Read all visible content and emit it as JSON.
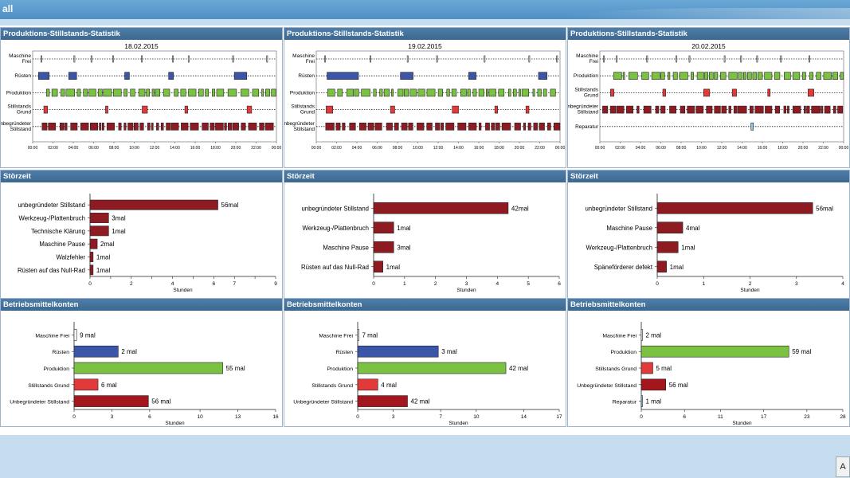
{
  "app": {
    "title": "all"
  },
  "corner_button": {
    "label": "A"
  },
  "colors": {
    "header_bg": "#3f6d96",
    "unbegruendet": "#8e1b22",
    "ruesten": "#3b55a8",
    "produktion": "#7cc242",
    "stillstand": "#e23a3a",
    "reparatur": "#8ec9e8",
    "frei": "#ffffff"
  },
  "panels": {
    "timeline_title": "Produktions-Stillstands-Statistik",
    "stoerzeit_title": "Störzeit",
    "betriebsmittel_title": "Betriebsmittelkonten"
  },
  "chart_data": [
    {
      "id": "timeline-1",
      "type": "timeline",
      "title": "18.02.2015",
      "rows": [
        "Maschine Frei",
        "Rüsten",
        "Produktion",
        "Stillstands Grund",
        "Unbegründeter Stillstand"
      ],
      "x_ticks": [
        "00:00",
        "02:00",
        "04:00",
        "06:00",
        "08:00",
        "10:00",
        "12:00",
        "14:00",
        "16:00",
        "18:00",
        "20:00",
        "22:00",
        "00:00"
      ]
    },
    {
      "id": "timeline-2",
      "type": "timeline",
      "title": "19.02.2015",
      "rows": [
        "Maschine Frei",
        "Rüsten",
        "Produktion",
        "Stillstands Grund",
        "Unbegründeter Stillstand"
      ],
      "x_ticks": [
        "00:00",
        "02:00",
        "04:00",
        "06:00",
        "08:00",
        "10:00",
        "12:00",
        "14:00",
        "16:00",
        "18:00",
        "20:00",
        "22:00",
        "00:00"
      ]
    },
    {
      "id": "timeline-3",
      "type": "timeline",
      "title": "20.02.2015",
      "rows": [
        "Maschine Frei",
        "Produktion",
        "Stillstands Grund",
        "Unbegründeter Stillstand",
        "Reparatur"
      ],
      "x_ticks": [
        "00:00",
        "02:00",
        "04:00",
        "06:00",
        "08:00",
        "10:00",
        "12:00",
        "14:00",
        "16:00",
        "18:00",
        "20:00",
        "22:00",
        "00:00"
      ]
    },
    {
      "id": "stoer-1",
      "type": "bar",
      "orientation": "horizontal",
      "categories": [
        "unbegründeter Stillstand",
        "Werkzeug-/Plattenbruch",
        "Technische Klärung",
        "Maschine Pause",
        "Walzfehler",
        "Rüsten auf das Null-Rad"
      ],
      "values": [
        6.2,
        0.9,
        0.9,
        0.35,
        0.15,
        0.15
      ],
      "labels": [
        "56mal",
        "3mal",
        "1mal",
        "2mal",
        "1mal",
        "1mal"
      ],
      "xlim": [
        0,
        9
      ],
      "x_ticks": [
        0,
        1,
        2,
        3,
        4,
        5,
        6,
        7,
        8,
        9
      ],
      "x_tick_labels": [
        "0",
        "",
        "2",
        "",
        "4",
        "",
        "6",
        "7",
        "",
        "9"
      ],
      "xlabel": "Stunden"
    },
    {
      "id": "stoer-2",
      "type": "bar",
      "orientation": "horizontal",
      "categories": [
        "unbegründeter Stillstand",
        "Werkzeug-/Plattenbruch",
        "Maschine Pause",
        "Rüsten auf das Null-Rad"
      ],
      "values": [
        4.35,
        0.65,
        0.65,
        0.3
      ],
      "labels": [
        "42mal",
        "1mal",
        "3mal",
        "1mal"
      ],
      "xlim": [
        0,
        6
      ],
      "x_ticks": [
        0,
        1,
        2,
        3,
        4,
        5,
        6
      ],
      "x_tick_labels": [
        "0",
        "1",
        "2",
        "3",
        "4",
        "5",
        "6"
      ],
      "xlabel": "Stunden"
    },
    {
      "id": "stoer-3",
      "type": "bar",
      "orientation": "horizontal",
      "categories": [
        "unbegründeter Stillstand",
        "Maschine Pause",
        "Werkzeug-/Plattenbruch",
        "Späneförderer defekt"
      ],
      "values": [
        3.35,
        0.55,
        0.45,
        0.2
      ],
      "labels": [
        "56mal",
        "4mal",
        "1mal",
        "1mal"
      ],
      "xlim": [
        0,
        4
      ],
      "x_ticks": [
        0,
        1,
        2,
        3,
        4
      ],
      "x_tick_labels": [
        "0",
        "1",
        "2",
        "3",
        "4"
      ],
      "xlabel": "Stunden"
    },
    {
      "id": "betrieb-1",
      "type": "bar",
      "orientation": "horizontal",
      "categories": [
        "Maschine Frei",
        "Rüsten",
        "Produktion",
        "Stillstands Grund",
        "Unbegründeter Stillstand"
      ],
      "values": [
        0.2,
        3.5,
        11.8,
        1.9,
        5.9
      ],
      "labels": [
        "9 mal",
        "2 mal",
        "55 mal",
        "6 mal",
        "56 mal"
      ],
      "colors": [
        "#ffffff",
        "#3b55a8",
        "#7cc242",
        "#e23a3a",
        "#a3161e"
      ],
      "xlim": [
        0,
        16
      ],
      "x_ticks": [
        0,
        3,
        6,
        10,
        13,
        16
      ],
      "x_tick_labels": [
        "0",
        "3",
        "6",
        "10",
        "13",
        "16"
      ],
      "xlabel": "Stunden"
    },
    {
      "id": "betrieb-2",
      "type": "bar",
      "orientation": "horizontal",
      "categories": [
        "Maschine Frei",
        "Rüsten",
        "Produktion",
        "Stillstands Grund",
        "Unbegründeter Stillstand"
      ],
      "values": [
        0.1,
        6.8,
        12.5,
        1.7,
        4.2
      ],
      "labels": [
        "7 mal",
        "3 mal",
        "42 mal",
        "4 mal",
        "42 mal"
      ],
      "colors": [
        "#ffffff",
        "#3b55a8",
        "#7cc242",
        "#e23a3a",
        "#a3161e"
      ],
      "xlim": [
        0,
        17
      ],
      "x_ticks": [
        0,
        3,
        7,
        10,
        14,
        17
      ],
      "x_tick_labels": [
        "0",
        "3",
        "7",
        "10",
        "14",
        "17"
      ],
      "xlabel": "Stunden"
    },
    {
      "id": "betrieb-3",
      "type": "bar",
      "orientation": "horizontal",
      "categories": [
        "Maschine Frei",
        "Produktion",
        "Stillstands Grund",
        "Unbegründeter Stillstand",
        "Reparatur"
      ],
      "values": [
        0.1,
        20.5,
        1.6,
        3.4,
        0.15
      ],
      "labels": [
        "2 mal",
        "59 mal",
        "5 mal",
        "56 mal",
        "1 mal"
      ],
      "colors": [
        "#ffffff",
        "#7cc242",
        "#e23a3a",
        "#a3161e",
        "#8ec9e8"
      ],
      "xlim": [
        0,
        28
      ],
      "x_ticks": [
        0,
        6,
        11,
        17,
        23,
        28
      ],
      "x_tick_labels": [
        "0",
        "6",
        "11",
        "17",
        "23",
        "28"
      ],
      "xlabel": "Stunden"
    }
  ]
}
